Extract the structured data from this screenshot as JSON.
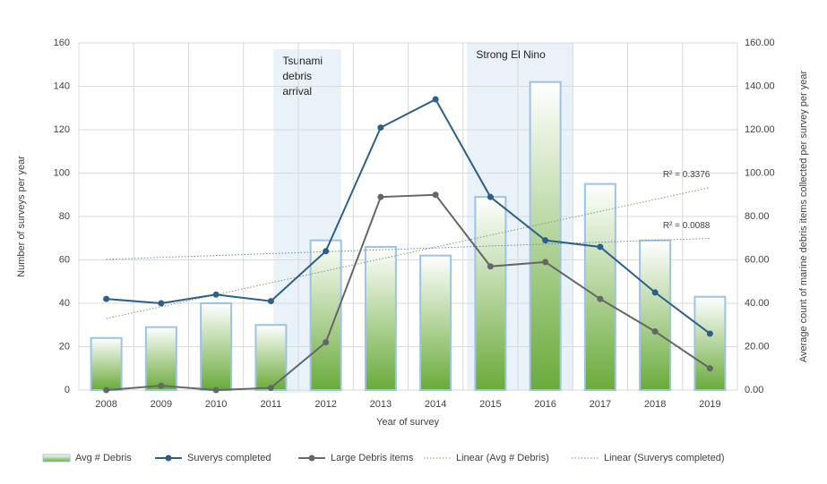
{
  "chart_data": {
    "type": "combo",
    "x_label": "Year of survey",
    "y_label": "Number of surveys per year",
    "y2_label": "Average count of marine debris items collected per survey per year",
    "categories": [
      "2008",
      "2009",
      "2010",
      "2011",
      "2012",
      "2013",
      "2014",
      "2015",
      "2016",
      "2017",
      "2018",
      "2019"
    ],
    "series": [
      {
        "name": "Avg # Debris",
        "type": "bar",
        "axis": "y2",
        "color": "#6aaa3a",
        "edge": "#9dc3e6",
        "values": [
          24,
          29,
          40,
          30,
          69,
          66,
          62,
          89,
          142,
          95,
          69,
          43
        ]
      },
      {
        "name": "Suverys completed",
        "type": "line",
        "color": "#2c5f8a",
        "values": [
          42,
          40,
          44,
          41,
          64,
          121,
          134,
          89,
          69,
          66,
          45,
          26
        ]
      },
      {
        "name": "Large Debris items",
        "type": "line",
        "color": "#666666",
        "values": [
          0,
          2,
          0,
          1,
          22,
          89,
          90,
          57,
          59,
          42,
          27,
          10
        ]
      }
    ],
    "trendlines": [
      {
        "name": "Linear (Avg # Debris)",
        "source": "Avg # Debris",
        "color": "#7f9f6a",
        "r2_label": "R² = 0.3376"
      },
      {
        "name": "Linear (Suverys completed)",
        "source": "Suverys completed",
        "color": "#6b8aa6",
        "r2_label": "R² = 0.0088"
      }
    ],
    "annotations": [
      {
        "text": [
          "Tsunami",
          "debris",
          "arrival"
        ],
        "span": [
          "2011",
          "2012"
        ]
      },
      {
        "text": [
          "Strong El Nino"
        ],
        "span": [
          "2015",
          "2016"
        ]
      }
    ],
    "ylim": [
      0,
      160
    ],
    "yticks": [
      0,
      20,
      40,
      60,
      80,
      100,
      120,
      140,
      160
    ],
    "y2lim": [
      0,
      160
    ],
    "y2ticks": [
      {
        "value": 0,
        "label": "0.00"
      },
      {
        "value": 20,
        "label": "20.00"
      },
      {
        "value": 40,
        "label": "40.00"
      },
      {
        "value": 60,
        "label": "60.00"
      },
      {
        "value": 80,
        "label": "80.00"
      },
      {
        "value": 100,
        "label": "100.00"
      },
      {
        "value": 120,
        "label": "120.00"
      },
      {
        "value": 140,
        "label": "140.00"
      },
      {
        "value": 160,
        "label": "160.00"
      }
    ],
    "grid": true,
    "legend": "bottom"
  }
}
